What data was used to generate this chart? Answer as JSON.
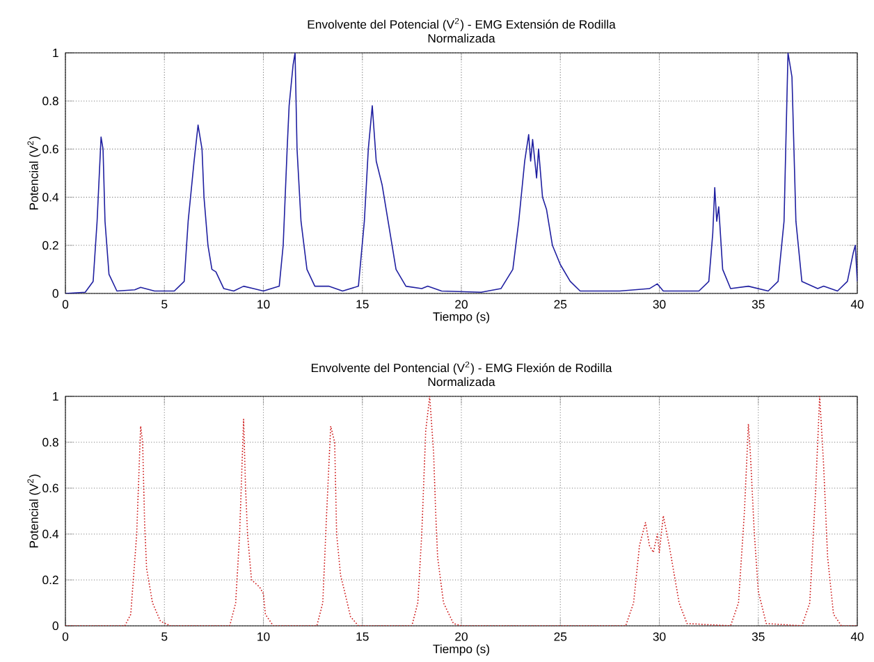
{
  "chart_data": [
    {
      "type": "line",
      "title": "Envolvente del Potencial (V$^{2}$) - EMG Extensión de Rodilla",
      "subtitle": "Normalizada",
      "xlabel": "Tiempo (s)",
      "ylabel": "Potencial (V$^{2}$)",
      "grid": true,
      "marker": "none",
      "xlim": [
        0,
        40
      ],
      "ylim": [
        0,
        1
      ],
      "xticks": [
        0,
        5,
        10,
        15,
        20,
        25,
        30,
        35,
        40
      ],
      "yticks": [
        0,
        0.2,
        0.4,
        0.6,
        0.8,
        1
      ],
      "series": [
        {
          "color": "#1f1fa0",
          "line_style": "solid",
          "x": [
            0,
            1,
            1.4,
            1.6,
            1.8,
            1.9,
            2.0,
            2.2,
            2.6,
            3.5,
            3.8,
            4.5,
            5.5,
            6.0,
            6.2,
            6.5,
            6.7,
            6.9,
            7.0,
            7.2,
            7.4,
            7.6,
            8.0,
            8.5,
            9.0,
            9.5,
            10.0,
            10.8,
            11.0,
            11.2,
            11.3,
            11.5,
            11.6,
            11.7,
            11.9,
            12.2,
            12.6,
            13.3,
            14.0,
            14.8,
            15.1,
            15.3,
            15.5,
            15.7,
            16.0,
            16.3,
            16.7,
            17.2,
            18.0,
            18.3,
            19.0,
            21.0,
            22.0,
            22.6,
            22.9,
            23.2,
            23.4,
            23.5,
            23.6,
            23.8,
            23.9,
            24.1,
            24.3,
            24.6,
            25.0,
            25.5,
            26.0,
            28.0,
            29.5,
            29.9,
            30.2,
            32.0,
            32.5,
            32.7,
            32.8,
            32.9,
            33.0,
            33.2,
            33.6,
            34.5,
            35.5,
            36.0,
            36.3,
            36.5,
            36.7,
            36.9,
            37.2,
            38.0,
            38.3,
            39.0,
            39.5,
            39.8,
            39.9,
            40.0
          ],
          "values": [
            0,
            0.005,
            0.05,
            0.3,
            0.65,
            0.6,
            0.3,
            0.08,
            0.01,
            0.015,
            0.025,
            0.01,
            0.01,
            0.05,
            0.3,
            0.55,
            0.7,
            0.6,
            0.4,
            0.2,
            0.1,
            0.09,
            0.02,
            0.01,
            0.03,
            0.02,
            0.01,
            0.03,
            0.2,
            0.6,
            0.78,
            0.95,
            1.0,
            0.6,
            0.3,
            0.1,
            0.03,
            0.03,
            0.01,
            0.03,
            0.3,
            0.6,
            0.78,
            0.55,
            0.45,
            0.3,
            0.1,
            0.03,
            0.02,
            0.03,
            0.01,
            0.005,
            0.02,
            0.1,
            0.3,
            0.55,
            0.66,
            0.55,
            0.64,
            0.48,
            0.6,
            0.4,
            0.35,
            0.2,
            0.12,
            0.05,
            0.01,
            0.01,
            0.02,
            0.04,
            0.01,
            0.01,
            0.05,
            0.25,
            0.44,
            0.3,
            0.36,
            0.1,
            0.02,
            0.03,
            0.01,
            0.05,
            0.3,
            1.0,
            0.9,
            0.3,
            0.05,
            0.02,
            0.03,
            0.01,
            0.05,
            0.17,
            0.2,
            0.05
          ]
        }
      ]
    },
    {
      "type": "line",
      "title": "Envolvente del Pontencial (V$^{2}$) - EMG Flexión de Rodilla",
      "subtitle": "Normalizada",
      "xlabel": "Tiempo (s)",
      "ylabel": "Potencial (V$^{2}$)",
      "grid": true,
      "marker": "none",
      "xlim": [
        0,
        40
      ],
      "ylim": [
        0,
        1
      ],
      "xticks": [
        0,
        5,
        10,
        15,
        20,
        25,
        30,
        35,
        40
      ],
      "yticks": [
        0,
        0.2,
        0.4,
        0.6,
        0.8,
        1
      ],
      "series": [
        {
          "color": "#cc1111",
          "line_style": "dotted",
          "x": [
            0,
            3.0,
            3.3,
            3.6,
            3.8,
            3.9,
            4.0,
            4.1,
            4.4,
            4.8,
            5.3,
            8.3,
            8.6,
            8.8,
            9.0,
            9.1,
            9.2,
            9.4,
            9.8,
            10.0,
            10.1,
            10.5,
            12.7,
            13.0,
            13.2,
            13.4,
            13.6,
            13.7,
            13.9,
            14.1,
            14.4,
            14.8,
            17.5,
            17.8,
            18.0,
            18.2,
            18.4,
            18.6,
            18.7,
            18.8,
            19.1,
            19.6,
            20.0,
            28.3,
            28.7,
            29.0,
            29.3,
            29.5,
            29.7,
            29.9,
            30.0,
            30.2,
            30.5,
            30.8,
            31.0,
            31.4,
            33.6,
            34.0,
            34.3,
            34.5,
            34.6,
            34.8,
            35.0,
            35.4,
            37.2,
            37.6,
            37.9,
            38.1,
            38.3,
            38.5,
            38.8,
            39.2,
            40
          ],
          "values": [
            0,
            0,
            0.05,
            0.4,
            0.87,
            0.8,
            0.45,
            0.25,
            0.1,
            0.02,
            0,
            0,
            0.1,
            0.4,
            0.9,
            0.6,
            0.4,
            0.2,
            0.17,
            0.14,
            0.05,
            0,
            0,
            0.1,
            0.5,
            0.87,
            0.8,
            0.4,
            0.22,
            0.15,
            0.04,
            0,
            0,
            0.1,
            0.4,
            0.85,
            1.0,
            0.75,
            0.5,
            0.3,
            0.1,
            0.01,
            0,
            0,
            0.1,
            0.35,
            0.45,
            0.35,
            0.32,
            0.4,
            0.32,
            0.48,
            0.35,
            0.2,
            0.1,
            0.01,
            0,
            0.1,
            0.5,
            0.88,
            0.75,
            0.4,
            0.15,
            0.01,
            0,
            0.1,
            0.6,
            1.0,
            0.7,
            0.3,
            0.05,
            0,
            0
          ]
        }
      ]
    }
  ]
}
